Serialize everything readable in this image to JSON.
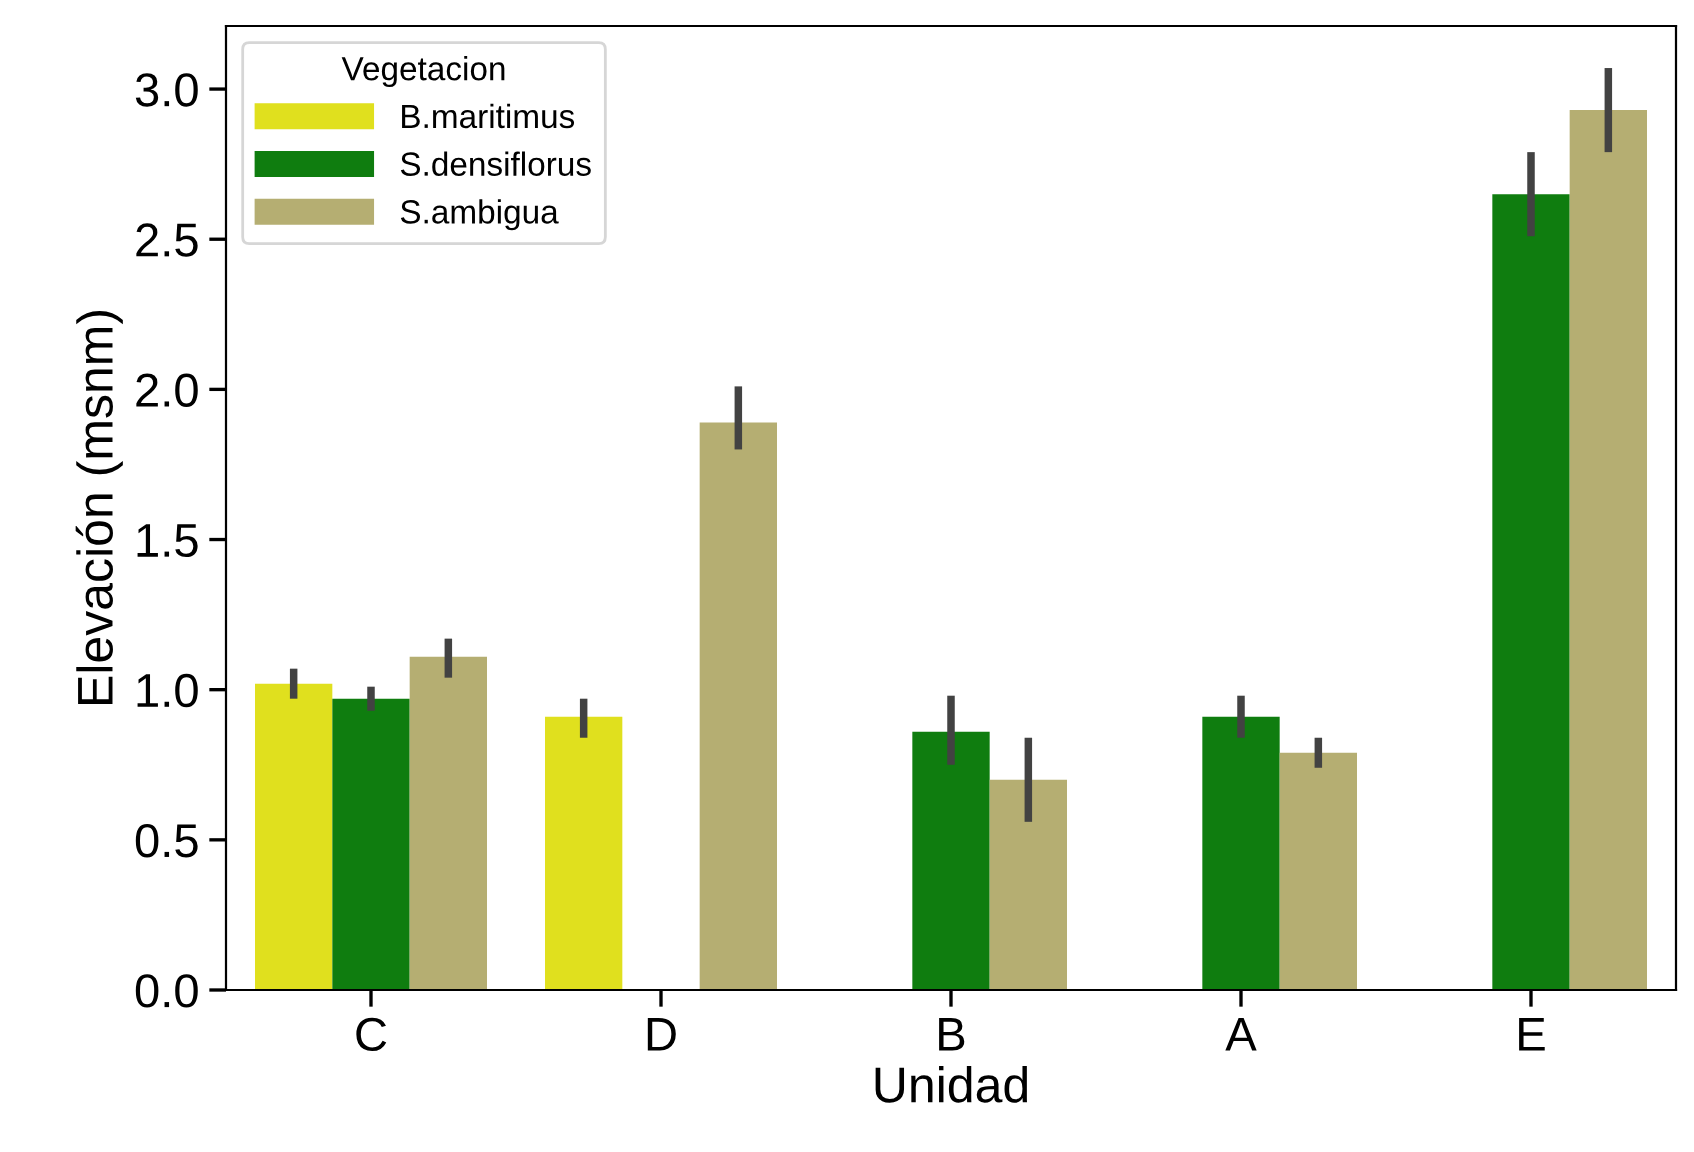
{
  "chart_data": {
    "type": "bar",
    "xlabel": "Unidad",
    "ylabel": "Elevación (msnm)",
    "legend_title": "Vegetacion",
    "legend": "top left",
    "grid": false,
    "categories": [
      "C",
      "D",
      "B",
      "A",
      "E"
    ],
    "series": [
      {
        "name": "B.maritimus",
        "color": "#e0e01e",
        "values": [
          1.02,
          0.91,
          null,
          null,
          null
        ],
        "errors": [
          [
            0.97,
            1.07
          ],
          [
            0.84,
            0.97
          ],
          null,
          null,
          null
        ]
      },
      {
        "name": "S.densiflorus",
        "color": "#0f7d0f",
        "values": [
          0.97,
          null,
          0.86,
          0.91,
          2.65
        ],
        "errors": [
          [
            0.93,
            1.01
          ],
          null,
          [
            0.75,
            0.98
          ],
          [
            0.84,
            0.98
          ],
          [
            2.51,
            2.79
          ]
        ]
      },
      {
        "name": "S.ambigua",
        "color": "#b5ae72",
        "values": [
          1.11,
          1.89,
          0.7,
          0.79,
          2.93
        ],
        "errors": [
          [
            1.04,
            1.17
          ],
          [
            1.8,
            2.01
          ],
          [
            0.56,
            0.84
          ],
          [
            0.74,
            0.84
          ],
          [
            2.79,
            3.07
          ]
        ]
      }
    ],
    "ylim": [
      0,
      3.21
    ],
    "yticks": [
      {
        "value": 0,
        "label": "0.0"
      },
      {
        "value": 0.5,
        "label": "0.5"
      },
      {
        "value": 1,
        "label": "1.0"
      },
      {
        "value": 1.5,
        "label": "1.5"
      },
      {
        "value": 2,
        "label": "2.0"
      },
      {
        "value": 2.5,
        "label": "2.5"
      },
      {
        "value": 3,
        "label": "3.0"
      }
    ]
  }
}
